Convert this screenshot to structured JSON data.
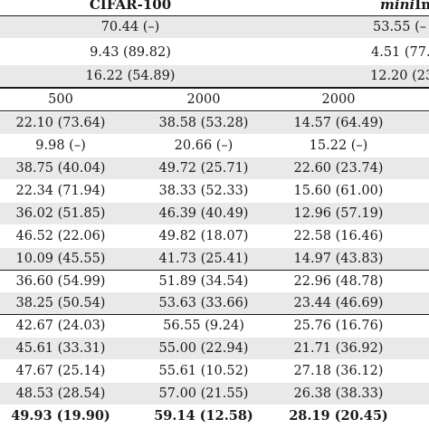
{
  "header": {
    "dataset_a": "CIFAR-100",
    "dataset_b_italic": "mini",
    "dataset_b_rest": "Imag"
  },
  "top_rows": [
    {
      "a": "70.44 (–)",
      "b": "53.55 (–"
    },
    {
      "a": "9.43 (89.82)",
      "b": "4.51 (77."
    },
    {
      "a": "16.22 (54.89)",
      "b": "12.20 (23"
    }
  ],
  "budget_row": {
    "c1": "500",
    "c2": "2000",
    "c3": "2000"
  },
  "group1": [
    {
      "c1": "22.10 (73.64)",
      "c2": "38.58 (53.28)",
      "c3": "14.57 (64.49)"
    },
    {
      "c1": "9.98 (–)",
      "c2": "20.66 (–)",
      "c3": "15.22 (–)"
    },
    {
      "c1": "38.75 (40.04)",
      "c2": "49.72 (25.71)",
      "c3": "22.60 (23.74)"
    },
    {
      "c1": "22.34 (71.94)",
      "c2": "38.33 (52.33)",
      "c3": "15.60 (61.00)"
    },
    {
      "c1": "36.02 (51.85)",
      "c2": "46.39 (40.49)",
      "c3": "12.96 (57.19)"
    },
    {
      "c1": "46.52 (22.06)",
      "c2": "49.82 (18.07)",
      "c3": "22.58 (16.46)"
    },
    {
      "c1": "10.09 (45.55)",
      "c2": "41.73 (25.41)",
      "c3": "14.97 (43.83)"
    }
  ],
  "group2": [
    {
      "c1": "36.60 (54.99)",
      "c2": "51.89 (34.54)",
      "c3": "22.96 (48.78)"
    },
    {
      "c1": "38.25 (50.54)",
      "c2": "53.63 (33.66)",
      "c3": "23.44 (46.69)"
    }
  ],
  "group3": [
    {
      "c1": "42.67 (24.03)",
      "c2": "56.55 (9.24)",
      "c3": "25.76 (16.76)"
    },
    {
      "c1": "45.61 (33.31)",
      "c2": "55.00 (22.94)",
      "c3": "21.71 (36.92)"
    },
    {
      "c1": "47.67 (25.14)",
      "c2": "55.61 (10.52)",
      "c3": "27.18 (36.12)"
    },
    {
      "c1": "48.53 (28.54)",
      "c2": "57.00 (21.55)",
      "c3": "26.38 (38.33)"
    }
  ],
  "final_row": {
    "c1": "49.93 (19.90)",
    "c2": "59.14 (12.58)",
    "c3": "28.19 (20.45)"
  }
}
